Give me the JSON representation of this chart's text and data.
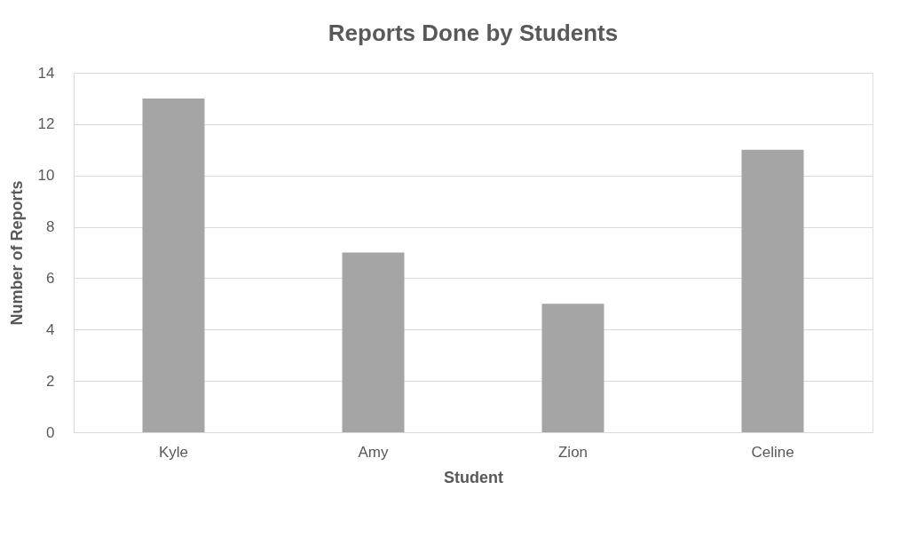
{
  "chart_data": {
    "type": "bar",
    "title": "Reports Done by Students",
    "xlabel": "Student",
    "ylabel": "Number of Reports",
    "categories": [
      "Kyle",
      "Amy",
      "Zion",
      "Celine"
    ],
    "values": [
      13,
      7,
      5,
      11
    ],
    "color": "#a5a5a5",
    "ylim": [
      0,
      14
    ],
    "yticks": [
      0,
      2,
      4,
      6,
      8,
      10,
      12,
      14
    ],
    "grid": "y"
  }
}
